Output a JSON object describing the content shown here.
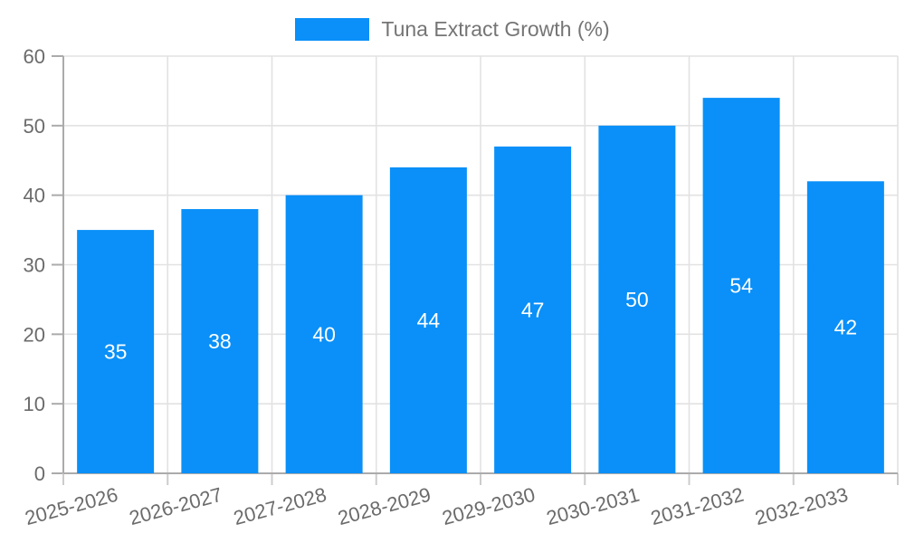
{
  "chart_data": {
    "type": "bar",
    "title": "",
    "legend": {
      "label": "Tuna Extract Growth (%)",
      "position": "top-center"
    },
    "categories": [
      "2025-2026",
      "2026-2027",
      "2027-2028",
      "2028-2029",
      "2029-2030",
      "2030-2031",
      "2031-2032",
      "2032-2033"
    ],
    "series": [
      {
        "name": "Tuna Extract Growth (%)",
        "values": [
          35,
          38,
          40,
          44,
          47,
          50,
          54,
          42
        ]
      }
    ],
    "xlabel": "",
    "ylabel": "",
    "ylim": [
      0,
      60
    ],
    "yticks": [
      0,
      10,
      20,
      30,
      40,
      50,
      60
    ],
    "grid": "both",
    "value_labels": "inside-center",
    "colors": {
      "bar": "#0a90f8",
      "value_label": "#ffffff",
      "grid": "#e2e2e2",
      "axis": "#ababab",
      "x_tick": "#cccccc",
      "y_tick": "#ababab",
      "tick_label": "#6b6b6b",
      "legend_label": "#757575",
      "background": "#ffffff"
    }
  }
}
